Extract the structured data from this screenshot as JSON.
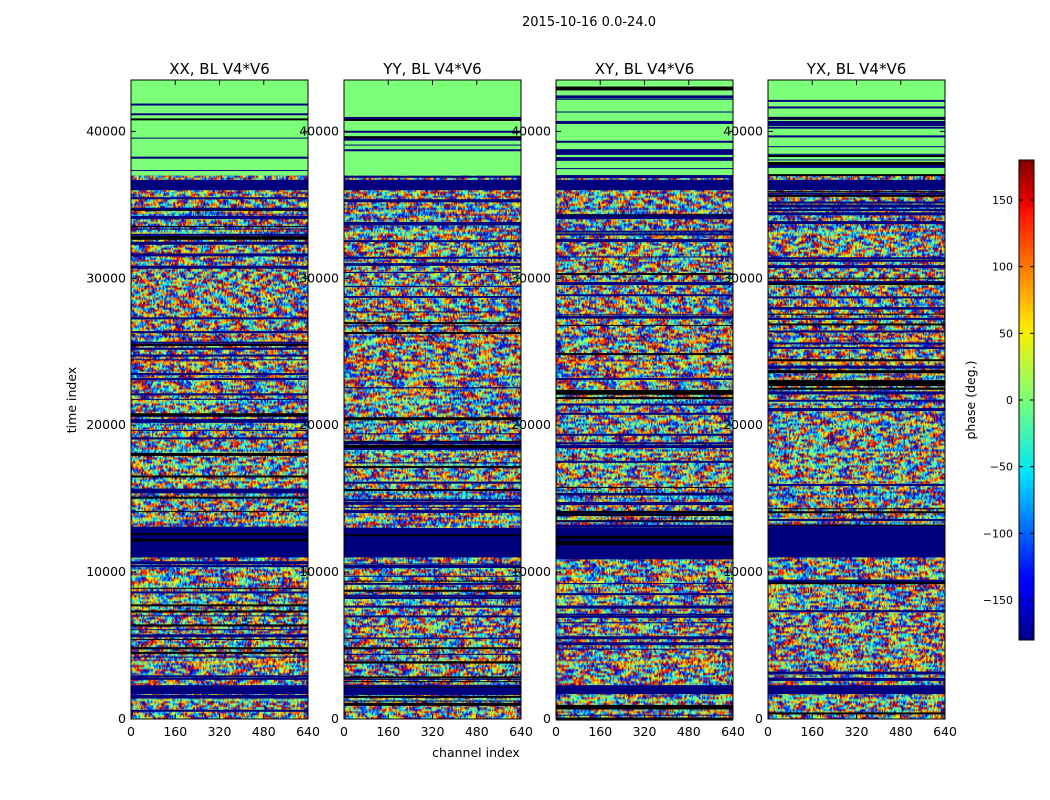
{
  "figure": {
    "suptitle": "2015-10-16 0.0-24.0"
  },
  "chart_data": {
    "type": "heatmap",
    "xlabel": "channel index",
    "ylabel": "time index",
    "xlim": [
      0,
      640
    ],
    "ylim": [
      0,
      43500
    ],
    "xticks": [
      0,
      160,
      320,
      480,
      640
    ],
    "yticks": [
      0,
      10000,
      20000,
      30000,
      40000
    ],
    "colormap": "jet",
    "panels": [
      {
        "title": "XX, BL V4*V6",
        "pol": "XX"
      },
      {
        "title": "YY, BL V4*V6",
        "pol": "YY"
      },
      {
        "title": "XY, BL V4*V6",
        "pol": "XY"
      },
      {
        "title": "YX, BL V4*V6",
        "pol": "YX"
      }
    ],
    "flagged_time_ranges": [
      [
        11000,
        13000
      ],
      [
        1700,
        2300
      ],
      [
        36000,
        36700
      ]
    ],
    "zero_phase_time_range": [
      37000,
      43500
    ],
    "colorbar": {
      "label": "phase (deg.)",
      "range": [
        -180,
        180
      ],
      "ticks": [
        150,
        100,
        50,
        0,
        -50,
        -100,
        -150
      ],
      "tick_labels": [
        "150",
        "100",
        "50",
        "0",
        "−50",
        "−100",
        "−150"
      ]
    }
  }
}
